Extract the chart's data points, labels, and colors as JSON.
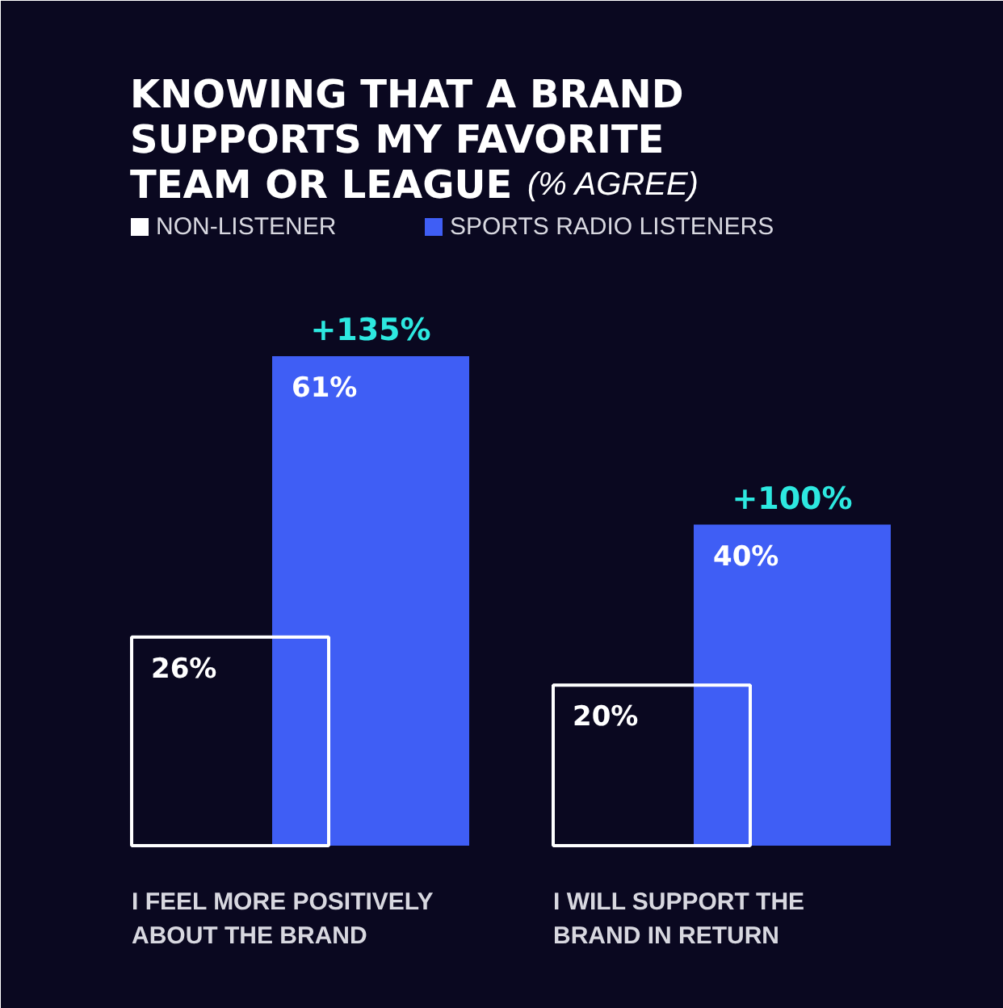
{
  "chart_data": {
    "type": "bar",
    "title": "KNOWING THAT A BRAND SUPPORTS MY FAVORITE TEAM OR LEAGUE",
    "subtitle": "(% AGREE)",
    "categories": [
      "I FEEL MORE POSITIVELY ABOUT THE BRAND",
      "I WILL SUPPORT THE BRAND IN RETURN"
    ],
    "series": [
      {
        "name": "NON-LISTENER",
        "color": "#ffffff",
        "values": [
          26,
          20
        ],
        "value_labels": [
          "26%",
          "20%"
        ]
      },
      {
        "name": "SPORTS RADIO LISTENERS",
        "color": "#3f5ef5",
        "values": [
          61,
          40
        ],
        "value_labels": [
          "61%",
          "40%"
        ]
      }
    ],
    "annotations": [
      "+135%",
      "+100%"
    ],
    "legend": "top left",
    "grid": false
  }
}
